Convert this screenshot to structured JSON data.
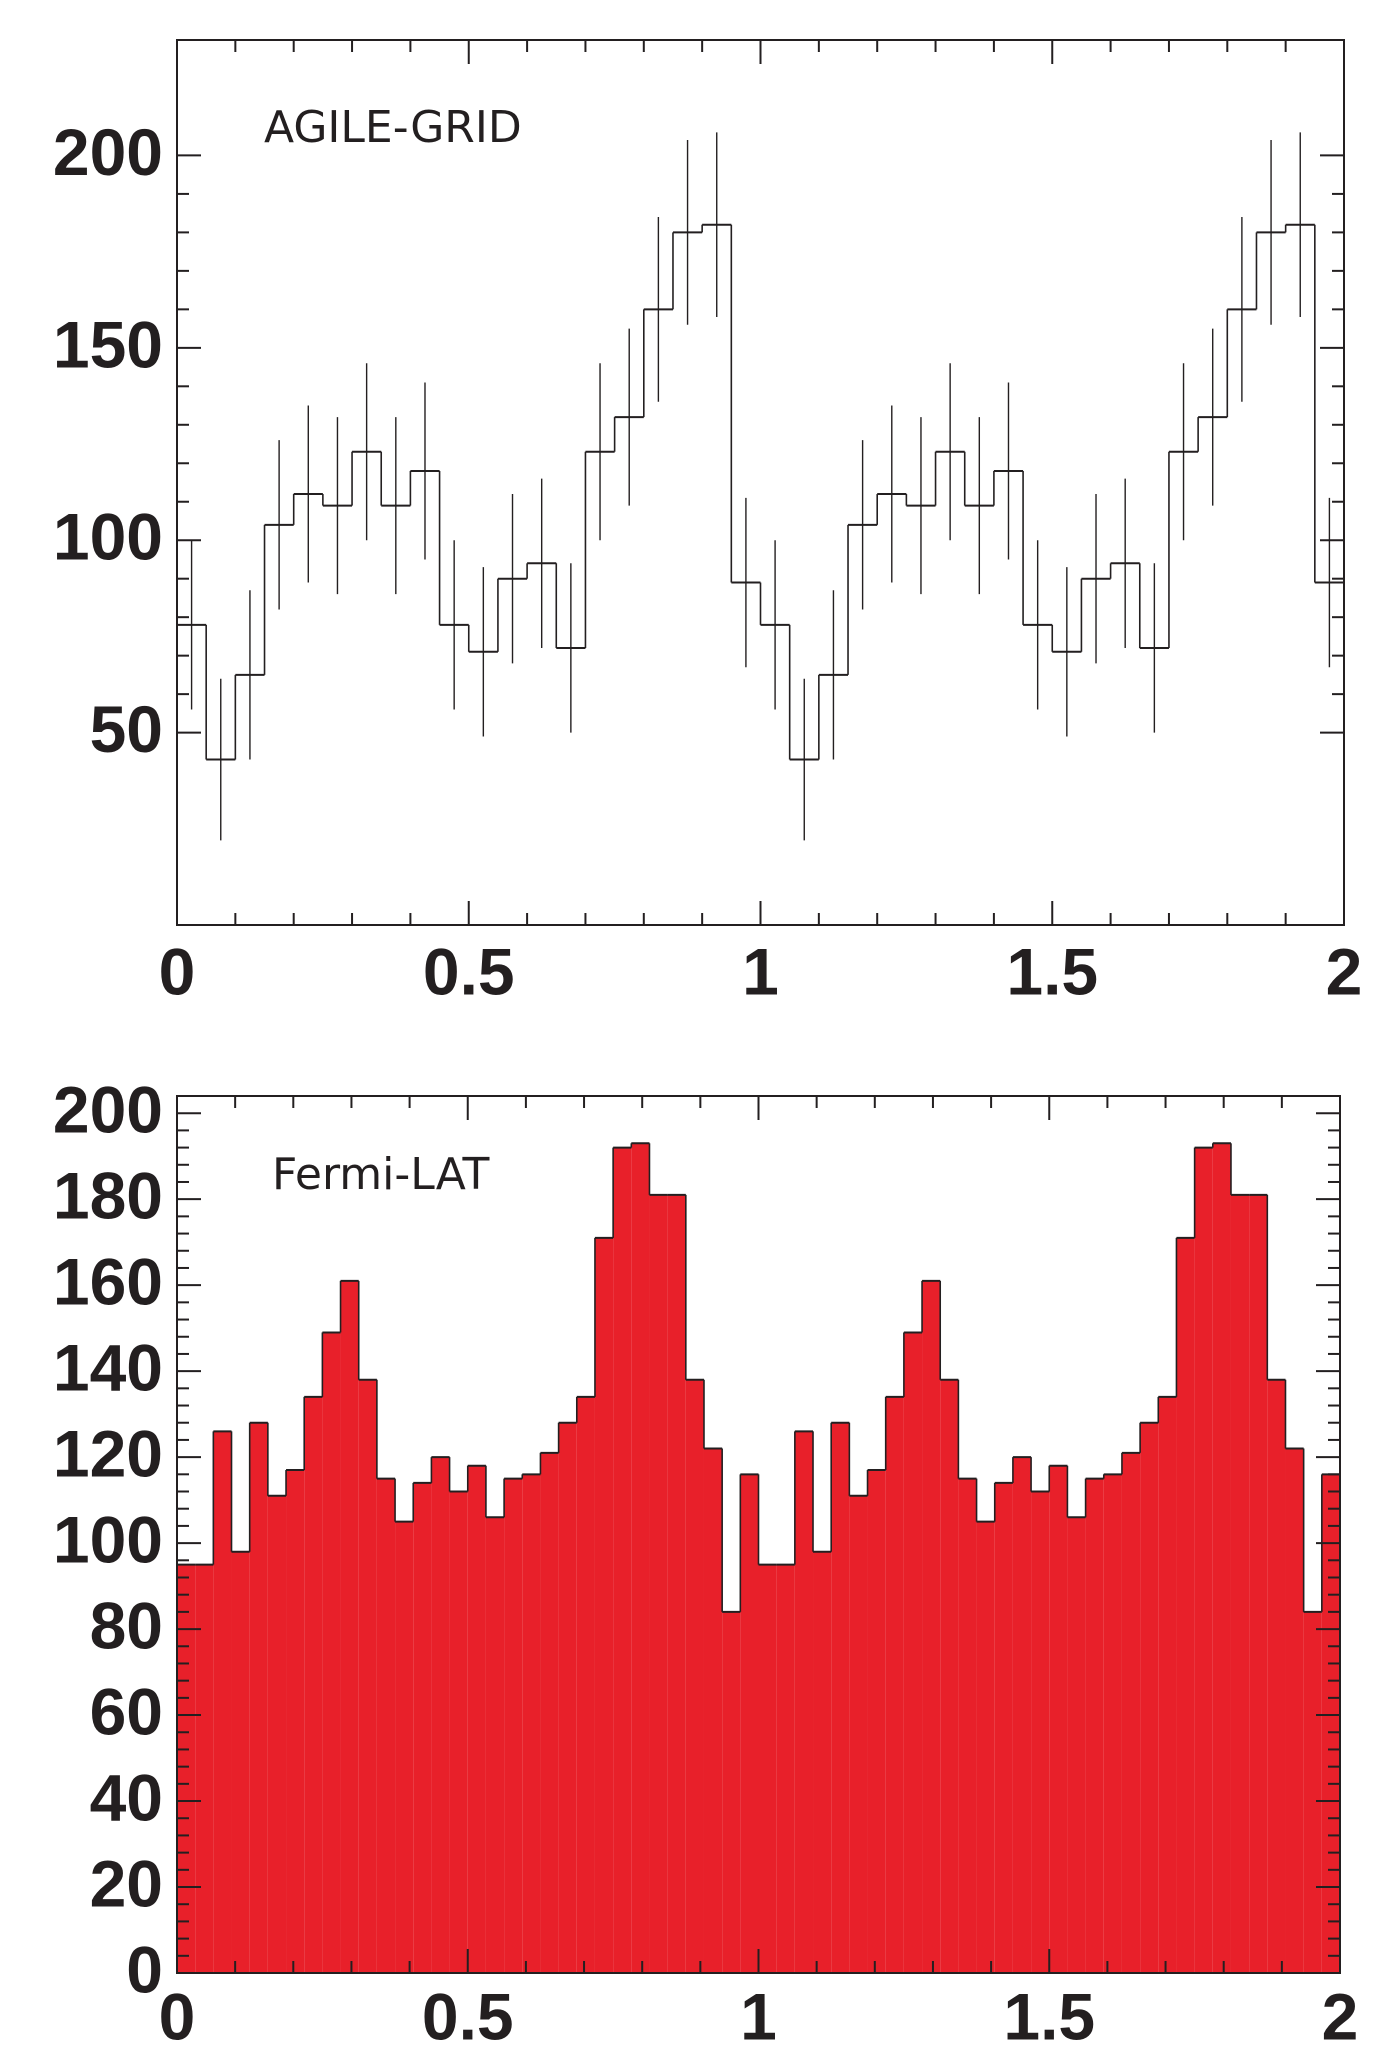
{
  "chart_data": [
    {
      "type": "histogram",
      "annotation": "AGILE-GRID",
      "filled": false,
      "color": "#000000",
      "bins": [
        0,
        0.05,
        0.1,
        0.15,
        0.2,
        0.25,
        0.3,
        0.35,
        0.4,
        0.45,
        0.5,
        0.55,
        0.6,
        0.65,
        0.7,
        0.75,
        0.8,
        0.85,
        0.9,
        0.95,
        1,
        1.05,
        1.1,
        1.15,
        1.2,
        1.25,
        1.3,
        1.35,
        1.4,
        1.45,
        1.5,
        1.55,
        1.6,
        1.65,
        1.7,
        1.75,
        1.8,
        1.85,
        1.9,
        1.95,
        2
      ],
      "values": [
        78,
        43,
        65,
        104,
        112,
        109,
        123,
        109,
        118,
        78,
        71,
        90,
        94,
        72,
        123,
        132,
        160,
        180,
        182,
        89,
        78,
        43,
        65,
        104,
        112,
        109,
        123,
        109,
        118,
        78,
        71,
        90,
        94,
        72,
        123,
        132,
        160,
        180,
        182,
        89
      ],
      "errors": [
        22,
        21,
        22,
        22,
        23,
        23,
        23,
        23,
        23,
        22,
        22,
        22,
        22,
        22,
        23,
        23,
        24,
        24,
        24,
        22,
        22,
        21,
        22,
        22,
        23,
        23,
        23,
        23,
        23,
        22,
        22,
        22,
        22,
        22,
        23,
        23,
        24,
        24,
        24,
        22
      ],
      "xlim": [
        0,
        2
      ],
      "xticks": [
        0,
        0.5,
        1,
        1.5,
        2
      ],
      "ylim": [
        0,
        230
      ],
      "yticks": [
        50,
        100,
        150,
        200
      ]
    },
    {
      "type": "histogram",
      "annotation": "Fermi-LAT",
      "filled": true,
      "color": "#e8202a",
      "bins": [
        0,
        0.03125,
        0.0625,
        0.09375,
        0.125,
        0.15625,
        0.1875,
        0.21875,
        0.25,
        0.28125,
        0.3125,
        0.34375,
        0.375,
        0.40625,
        0.4375,
        0.46875,
        0.5,
        0.53125,
        0.5625,
        0.59375,
        0.625,
        0.65625,
        0.6875,
        0.71875,
        0.75,
        0.78125,
        0.8125,
        0.84375,
        0.875,
        0.90625,
        0.9375,
        0.96875,
        1,
        1.03125,
        1.0625,
        1.09375,
        1.125,
        1.15625,
        1.1875,
        1.21875,
        1.25,
        1.28125,
        1.3125,
        1.34375,
        1.375,
        1.40625,
        1.4375,
        1.46875,
        1.5,
        1.53125,
        1.5625,
        1.59375,
        1.625,
        1.65625,
        1.6875,
        1.71875,
        1.75,
        1.78125,
        1.8125,
        1.84375,
        1.875,
        1.90625,
        1.9375,
        1.96875,
        2
      ],
      "values": [
        95,
        95,
        126,
        98,
        128,
        111,
        117,
        134,
        149,
        161,
        138,
        115,
        105,
        114,
        120,
        112,
        118,
        106,
        115,
        116,
        121,
        128,
        134,
        171,
        192,
        193,
        181,
        181,
        138,
        122,
        84,
        116,
        95,
        95,
        126,
        98,
        128,
        111,
        117,
        134,
        149,
        161,
        138,
        115,
        105,
        114,
        120,
        112,
        118,
        106,
        115,
        116,
        121,
        128,
        134,
        171,
        192,
        193,
        181,
        181,
        138,
        122,
        84,
        116
      ],
      "xlim": [
        0,
        2
      ],
      "xticks": [
        0,
        0.5,
        1,
        1.5,
        2
      ],
      "ylim": [
        0,
        204
      ],
      "yticks": [
        0,
        20,
        40,
        60,
        80,
        100,
        120,
        140,
        160,
        180,
        200
      ]
    }
  ]
}
